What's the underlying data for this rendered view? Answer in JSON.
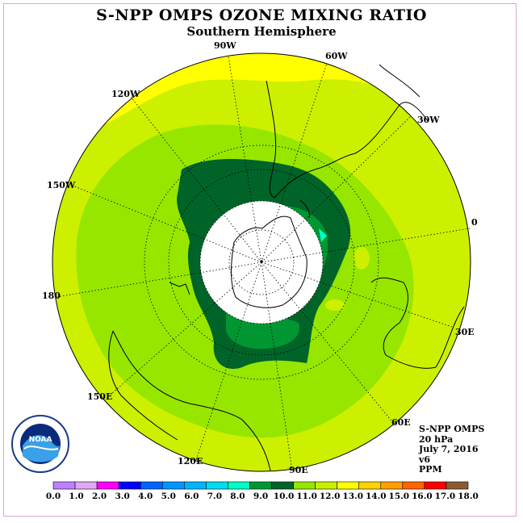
{
  "title": "S-NPP OMPS OZONE MIXING RATIO",
  "subtitle": "Southern Hemisphere",
  "longitude_labels": [
    "90W",
    "60W",
    "30W",
    "0",
    "30E",
    "60E",
    "90E",
    "120E",
    "150E",
    "180",
    "150W",
    "120W"
  ],
  "info": {
    "line1": "S-NPP OMPS",
    "line2": "20 hPa",
    "line3": "July 7, 2016",
    "line4": "v6",
    "line5": "PPM"
  },
  "logo": {
    "text": "NOAA",
    "ring_text": "NATIONAL OCEANIC AND ATMOSPHERIC ADMINISTRATION · U.S. DEPARTMENT OF COMMERCE"
  },
  "colorbar": {
    "ticks": [
      "0.0",
      "1.0",
      "2.0",
      "3.0",
      "4.0",
      "5.0",
      "6.0",
      "7.0",
      "8.0",
      "9.0",
      "10.0",
      "11.0",
      "12.0",
      "13.0",
      "14.0",
      "15.0",
      "16.0",
      "17.0",
      "18.0"
    ],
    "colors": [
      "#c080ff",
      "#e0a8f0",
      "#ff00ff",
      "#0000ff",
      "#0064ff",
      "#0096ff",
      "#00b4ff",
      "#00dcf0",
      "#00ffc8",
      "#009632",
      "#006428",
      "#96e600",
      "#c8f000",
      "#ffff00",
      "#ffd200",
      "#ffa000",
      "#ff6400",
      "#ff0000",
      "#8c5a32"
    ]
  },
  "map_colors": {
    "c12": "#ccf000",
    "c11": "#96e600",
    "c13": "#ffff00",
    "c10": "#006428",
    "c9": "#009632",
    "c8": "#00ffc8"
  }
}
